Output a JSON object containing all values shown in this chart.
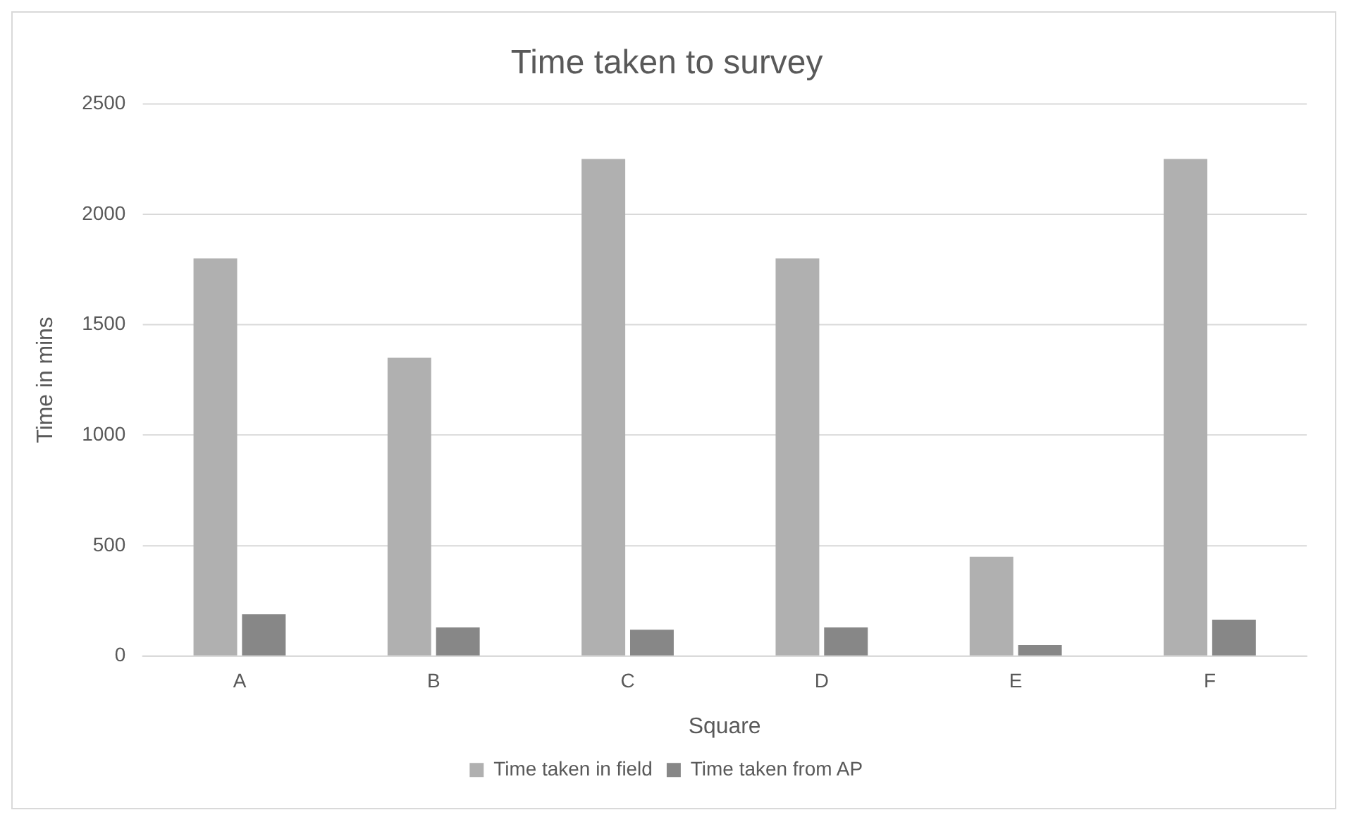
{
  "chart_data": {
    "type": "bar",
    "title": "Time taken to survey",
    "xlabel": "Square",
    "ylabel": "Time in mins",
    "categories": [
      "A",
      "B",
      "C",
      "D",
      "E",
      "F"
    ],
    "series": [
      {
        "name": "Time taken in field",
        "color": "#b0b0b0",
        "values": [
          1800,
          1350,
          2250,
          1800,
          450,
          2250
        ]
      },
      {
        "name": "Time taken from AP",
        "color": "#878787",
        "values": [
          190,
          130,
          120,
          130,
          50,
          165
        ]
      }
    ],
    "ylim": [
      0,
      2500
    ],
    "yticks": [
      0,
      500,
      1000,
      1500,
      2000,
      2500
    ],
    "grid": "y",
    "legend": "bottom"
  }
}
